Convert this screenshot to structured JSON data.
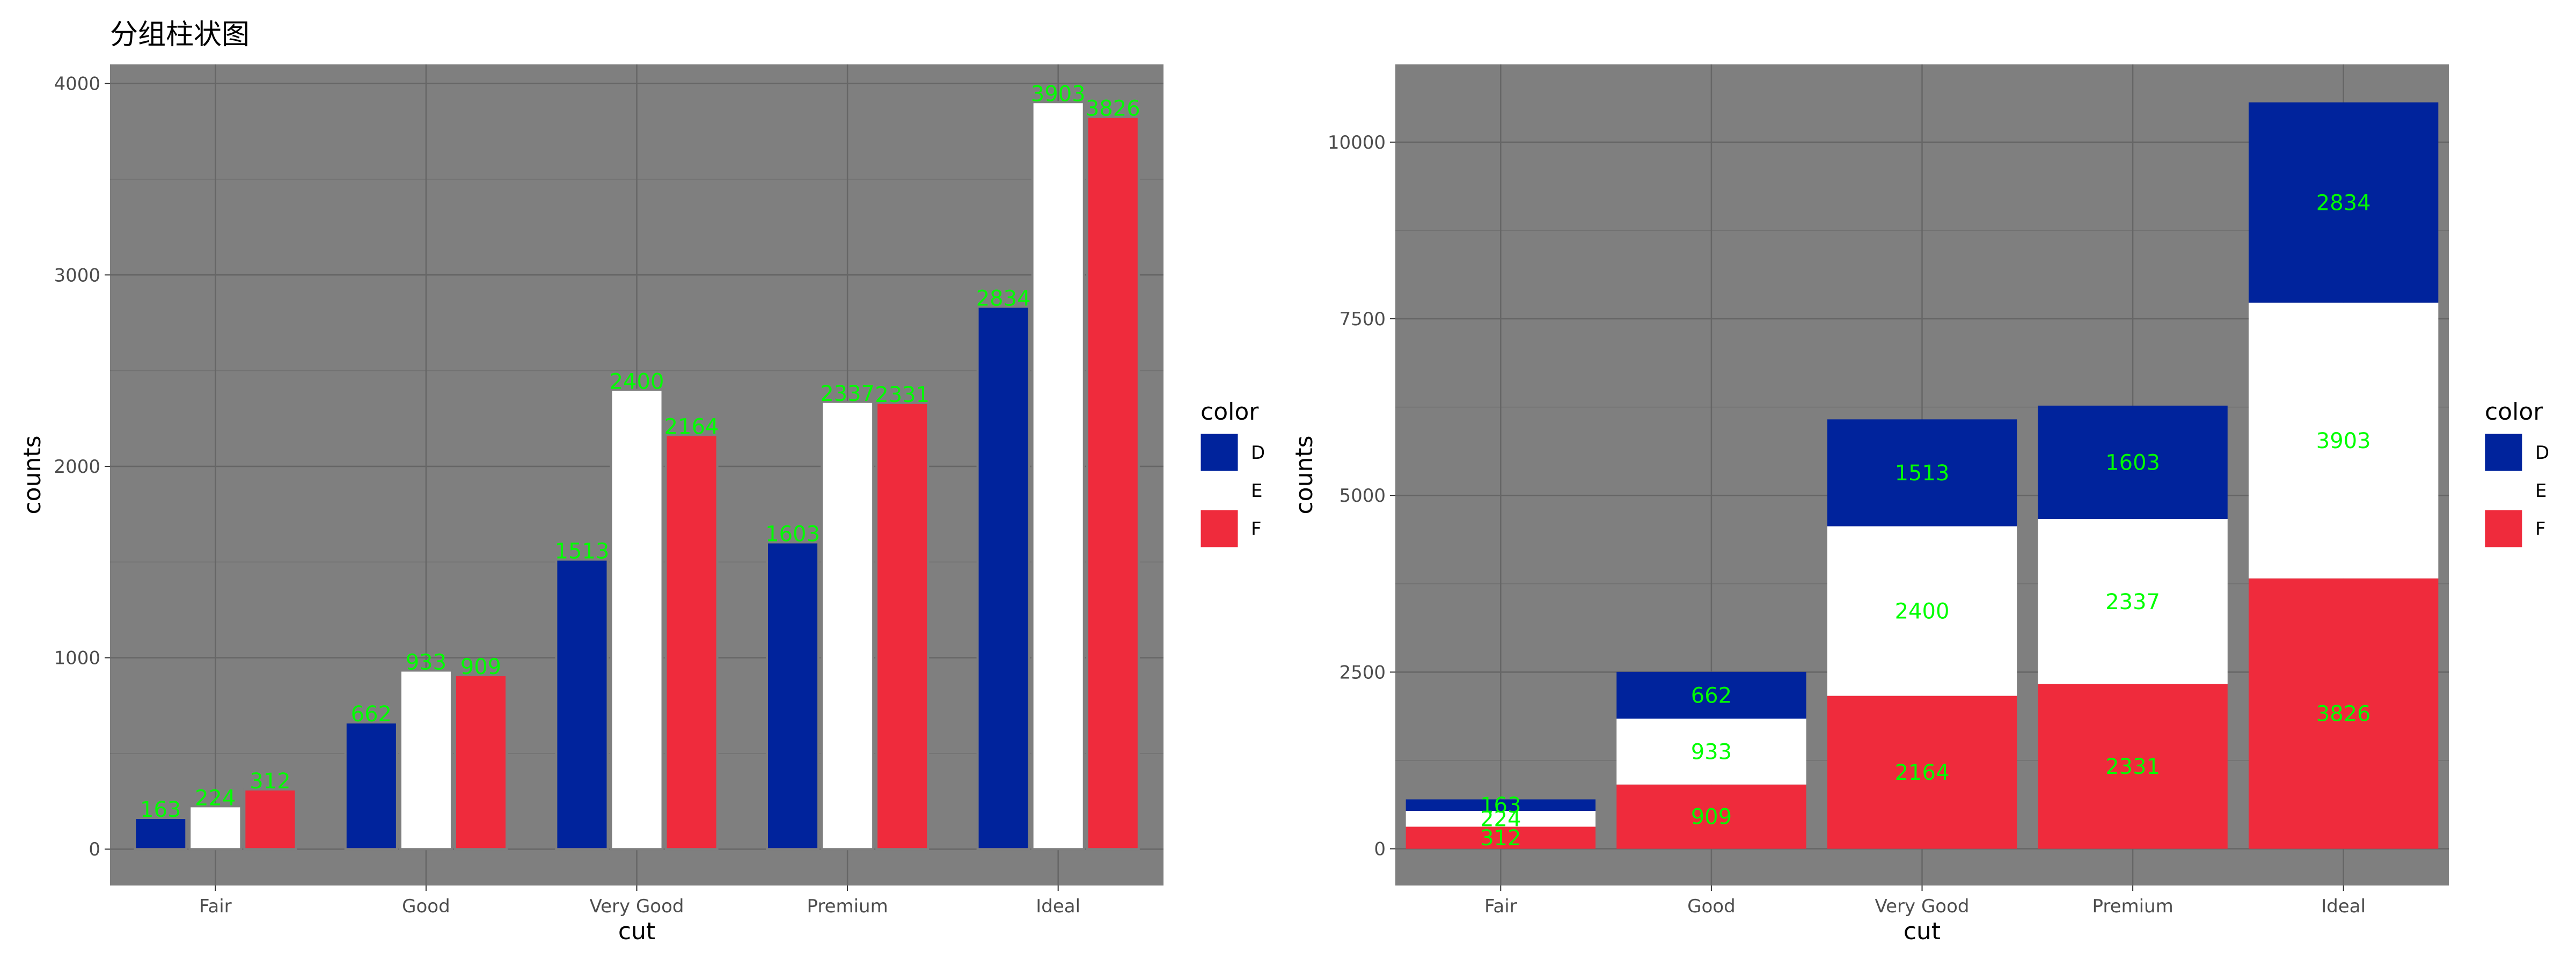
{
  "title": "分组柱状图",
  "chart_data": [
    {
      "type": "bar",
      "mode": "grouped",
      "title": "分组柱状图",
      "xlabel": "cut",
      "ylabel": "counts",
      "categories": [
        "Fair",
        "Good",
        "Very Good",
        "Premium",
        "Ideal"
      ],
      "series": [
        {
          "name": "D",
          "color": "#00239c",
          "values": [
            163,
            662,
            1513,
            1603,
            2834
          ]
        },
        {
          "name": "E",
          "color": "#ffffff",
          "values": [
            224,
            933,
            2400,
            2337,
            3903
          ]
        },
        {
          "name": "F",
          "color": "#ef2b3c",
          "values": [
            312,
            909,
            2164,
            2331,
            3826
          ]
        }
      ],
      "yticks": [
        0,
        1000,
        2000,
        3000,
        4000
      ],
      "ylim": [
        -190,
        4100
      ],
      "legend": {
        "title": "color",
        "position": "right"
      },
      "grid": true,
      "panel_background": "#7f7f7f",
      "label_color": "#00ff00"
    },
    {
      "type": "bar",
      "mode": "stacked",
      "title": "",
      "xlabel": "cut",
      "ylabel": "counts",
      "categories": [
        "Fair",
        "Good",
        "Very Good",
        "Premium",
        "Ideal"
      ],
      "series": [
        {
          "name": "D",
          "color": "#00239c",
          "values": [
            163,
            662,
            1513,
            1603,
            2834
          ]
        },
        {
          "name": "E",
          "color": "#ffffff",
          "values": [
            224,
            933,
            2400,
            2337,
            3903
          ]
        },
        {
          "name": "F",
          "color": "#ef2b3c",
          "values": [
            312,
            909,
            2164,
            2331,
            3826
          ]
        }
      ],
      "stack_order_bottom_to_top": [
        "F",
        "E",
        "D"
      ],
      "yticks": [
        0,
        2500,
        5000,
        7500,
        10000
      ],
      "ylim": [
        -520,
        11100
      ],
      "legend": {
        "title": "color",
        "position": "right"
      },
      "grid": true,
      "panel_background": "#7f7f7f",
      "label_color": "#00ff00"
    }
  ]
}
